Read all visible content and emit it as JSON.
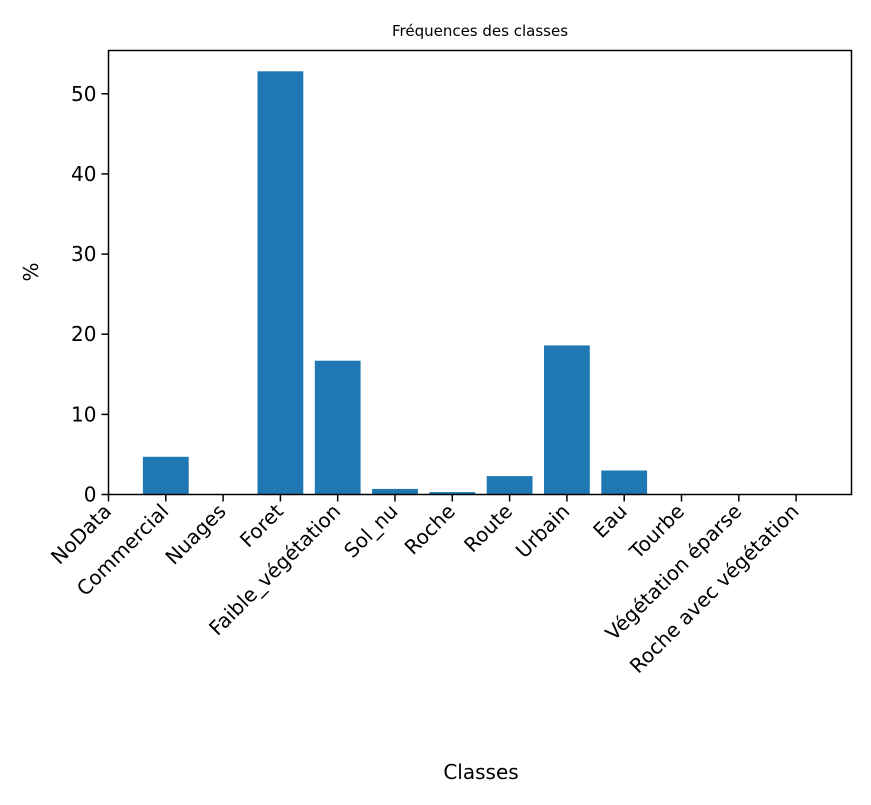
{
  "chart_data": {
    "type": "bar",
    "title": "Fréquences des classes",
    "xlabel": "Classes",
    "ylabel": "%",
    "categories": [
      "NoData",
      "Commercial",
      "Nuages",
      "Foret",
      "Faible_végétation",
      "Sol_nu",
      "Roche",
      "Route",
      "Urbain",
      "Eau",
      "Tourbe",
      "Végétation éparse",
      "Roche avec végétation"
    ],
    "values": [
      0,
      4.7,
      0,
      52.8,
      16.7,
      0.7,
      0.3,
      2.3,
      18.6,
      3.0,
      0,
      0,
      0
    ],
    "ylim": [
      0,
      55.4
    ],
    "yticks": [
      0,
      10,
      20,
      30,
      40,
      50
    ],
    "bar_color": "#1f77b4",
    "grid": false
  }
}
